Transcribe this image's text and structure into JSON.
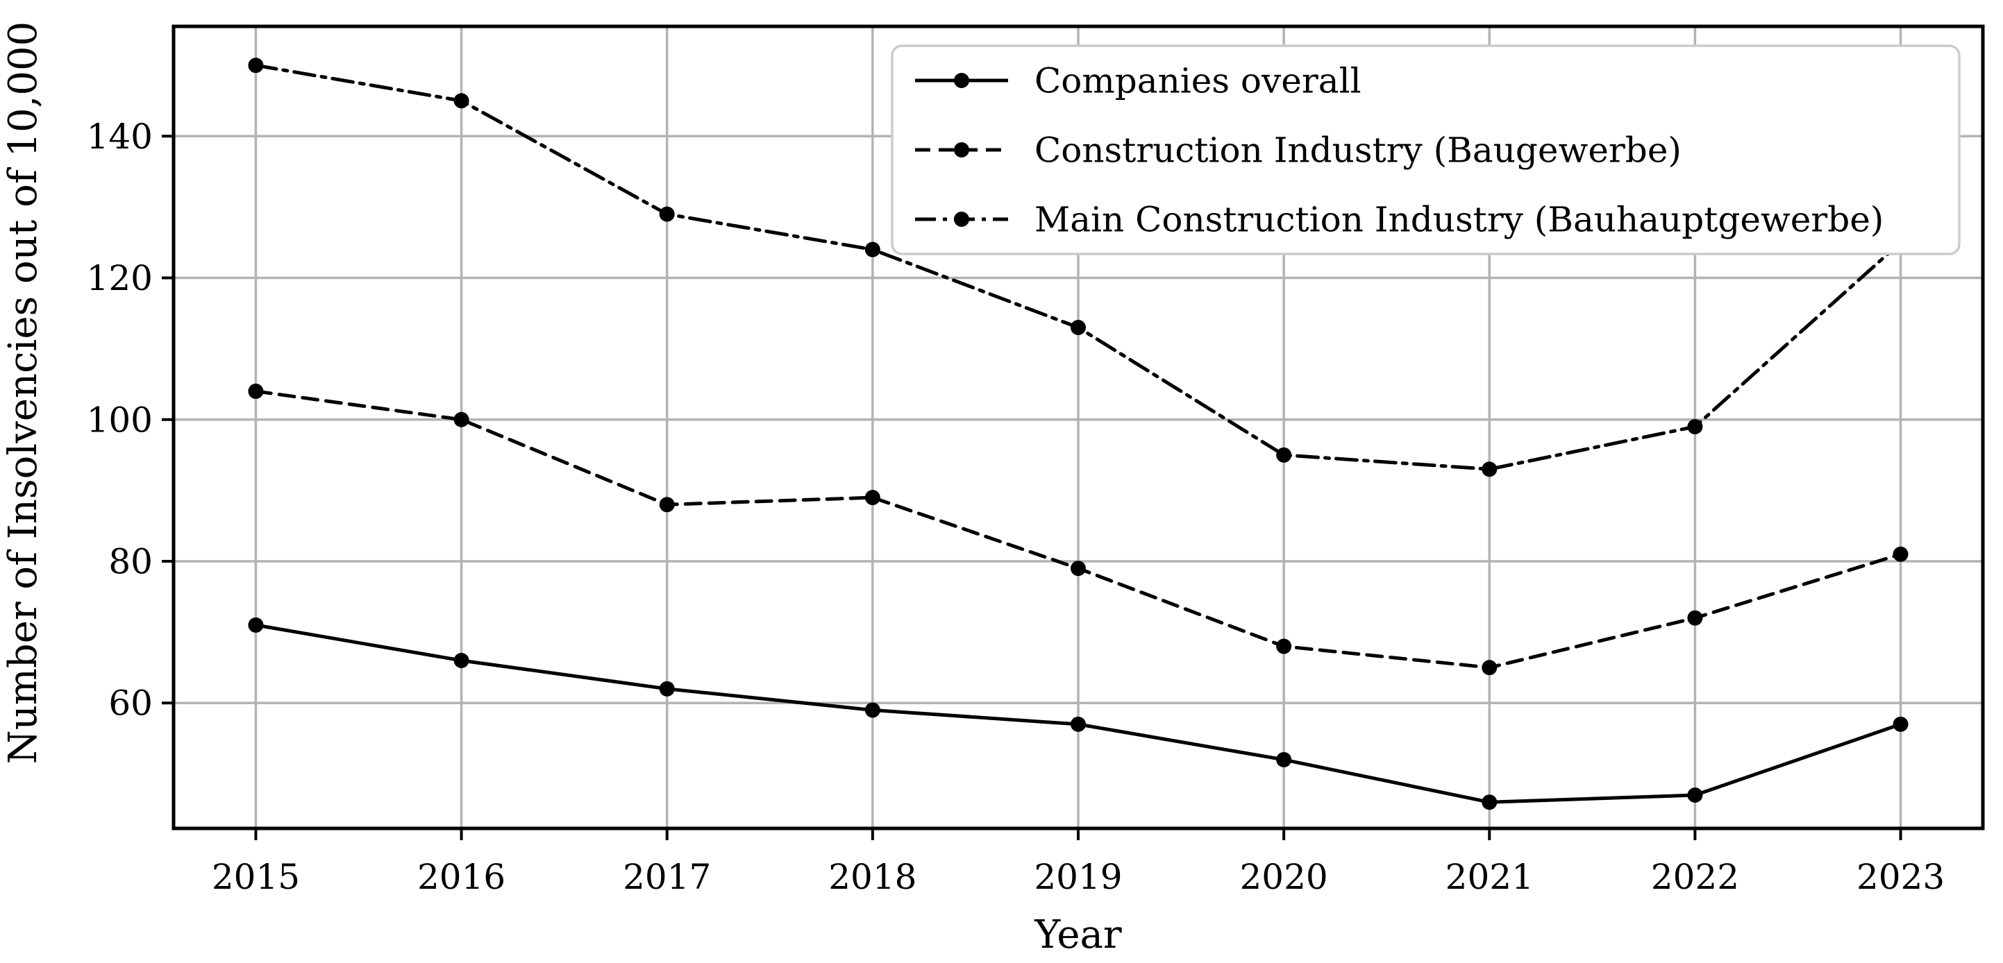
{
  "chart_data": {
    "type": "line",
    "title": "",
    "xlabel": "Year",
    "ylabel": "Number of Insolvencies out of 10,000",
    "categories": [
      2015,
      2016,
      2017,
      2018,
      2019,
      2020,
      2021,
      2022,
      2023
    ],
    "yticks": [
      60,
      80,
      100,
      120,
      140
    ],
    "xlim": [
      2014.6,
      2023.4
    ],
    "ylim": [
      42.3,
      155.5
    ],
    "grid": true,
    "legend_position": "upper right",
    "series": [
      {
        "name": "Companies overall",
        "line_style": "solid",
        "marker": "circle",
        "values": [
          71,
          66,
          62,
          59,
          57,
          52,
          46,
          47,
          57
        ]
      },
      {
        "name": "Construction Industry (Baugewerbe)",
        "line_style": "dashed",
        "marker": "circle",
        "values": [
          104,
          100,
          88,
          89,
          79,
          68,
          65,
          72,
          81
        ]
      },
      {
        "name": "Main Construction Industry (Bauhauptgewerbe)",
        "line_style": "dashdot",
        "marker": "circle",
        "values": [
          150,
          145,
          129,
          124,
          113,
          95,
          93,
          99,
          125
        ]
      }
    ],
    "colors": {
      "series": "#000000",
      "grid": "#b3b3b3",
      "spine": "#000000",
      "legend_border": "#cccccc",
      "background": "#ffffff"
    }
  }
}
